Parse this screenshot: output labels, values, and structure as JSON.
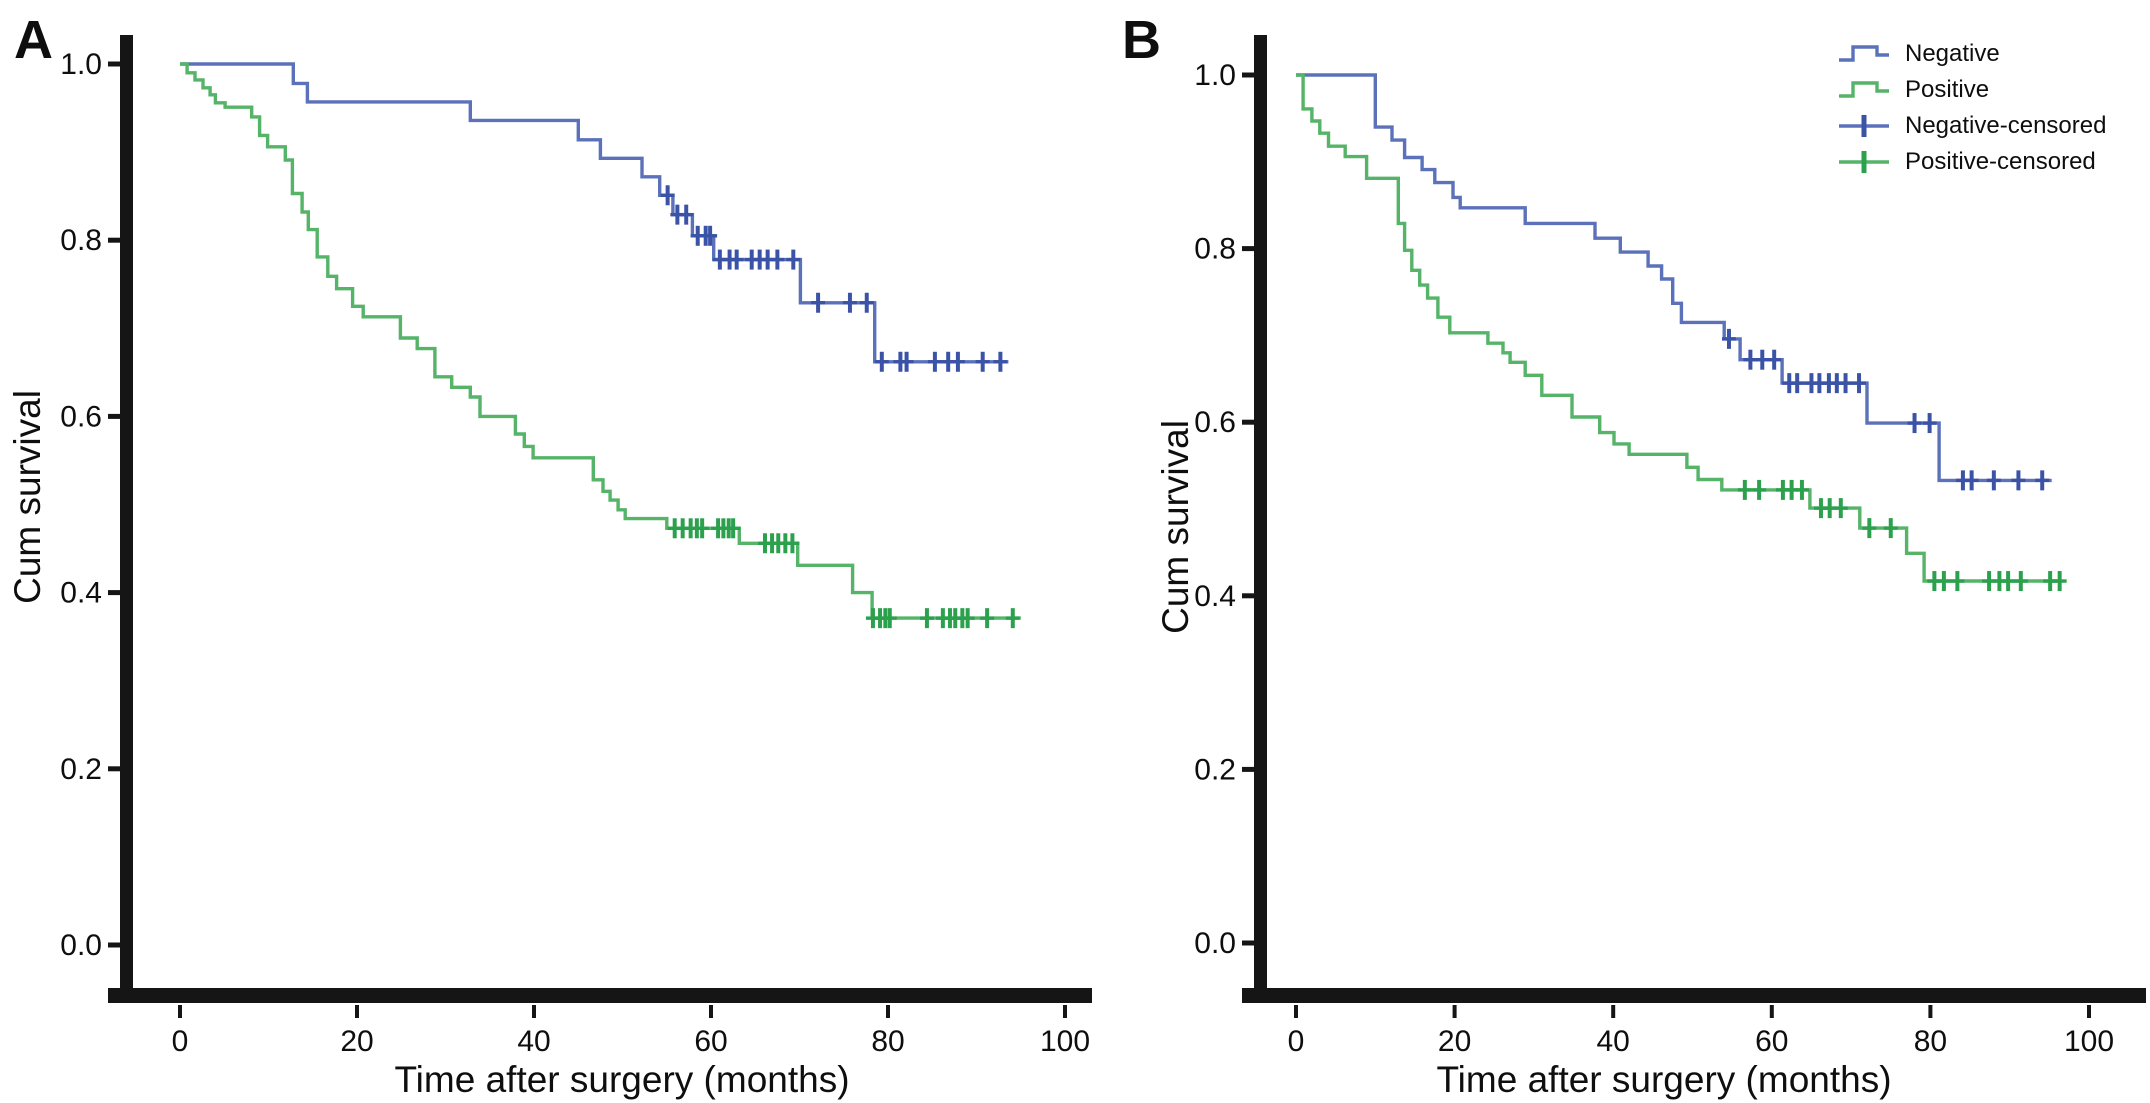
{
  "chart_data": {
    "type": "line",
    "subtype": "kaplan-meier-step",
    "grid": false,
    "legend": {
      "position": "top-right",
      "entries": [
        {
          "label": "Negative",
          "glyph": "step-line",
          "color": "#5b72bb",
          "accent": "#5b72bb"
        },
        {
          "label": "Positive",
          "glyph": "step-line",
          "color": "#55b468",
          "accent": "#55b468"
        },
        {
          "label": "Negative-censored",
          "glyph": "censor-plus",
          "color": "#5b72bb",
          "accent": "#3b53a7"
        },
        {
          "label": "Positive-censored",
          "glyph": "censor-plus",
          "color": "#55b468",
          "accent": "#2ca14d"
        }
      ]
    },
    "panels": [
      {
        "label": "A",
        "xlabel": "Time after surgery (months)",
        "ylabel": "Cum survival",
        "xlim": [
          0,
          100
        ],
        "ylim": [
          0.0,
          1.0
        ],
        "x_ticks": [
          0,
          20,
          40,
          60,
          80,
          100
        ],
        "y_ticks": [
          0.0,
          0.2,
          0.4,
          0.6,
          0.8,
          1.0
        ],
        "series": [
          {
            "name": "Negative",
            "color": "#5b72bb",
            "censor_color": "#3b53a7",
            "start": [
              0,
              1.0
            ],
            "steps": [
              [
                12.8,
                0.978
              ],
              [
                14.4,
                0.957
              ],
              [
                32.8,
                0.936
              ],
              [
                45.0,
                0.914
              ],
              [
                47.5,
                0.893
              ],
              [
                52.2,
                0.872
              ],
              [
                54.2,
                0.851
              ],
              [
                55.7,
                0.829
              ],
              [
                57.9,
                0.805
              ],
              [
                60.3,
                0.778
              ],
              [
                70.1,
                0.729
              ],
              [
                78.5,
                0.662
              ]
            ],
            "end_time": 93.6,
            "censored_times": [
              55.1,
              56.2,
              57.2,
              58.5,
              59.4,
              59.9,
              61.0,
              62.1,
              62.9,
              64.6,
              65.5,
              66.4,
              67.5,
              69.3,
              72.1,
              75.7,
              77.6,
              79.3,
              81.4,
              82.1,
              85.3,
              86.8,
              87.9,
              90.7,
              92.7
            ]
          },
          {
            "name": "Positive",
            "color": "#55b468",
            "censor_color": "#2ca14d",
            "start": [
              0,
              1.0
            ],
            "steps": [
              [
                0.8,
                0.99
              ],
              [
                1.7,
                0.982
              ],
              [
                2.6,
                0.973
              ],
              [
                3.4,
                0.965
              ],
              [
                4.0,
                0.956
              ],
              [
                5.1,
                0.951
              ],
              [
                8.1,
                0.94
              ],
              [
                9.0,
                0.919
              ],
              [
                9.9,
                0.906
              ],
              [
                11.9,
                0.891
              ],
              [
                12.7,
                0.853
              ],
              [
                13.8,
                0.832
              ],
              [
                14.5,
                0.812
              ],
              [
                15.5,
                0.781
              ],
              [
                16.7,
                0.759
              ],
              [
                17.7,
                0.745
              ],
              [
                19.5,
                0.725
              ],
              [
                20.7,
                0.713
              ],
              [
                24.9,
                0.689
              ],
              [
                26.8,
                0.677
              ],
              [
                28.8,
                0.645
              ],
              [
                30.7,
                0.633
              ],
              [
                32.8,
                0.622
              ],
              [
                33.9,
                0.6
              ],
              [
                37.9,
                0.58
              ],
              [
                38.9,
                0.566
              ],
              [
                39.9,
                0.553
              ],
              [
                46.7,
                0.528
              ],
              [
                47.8,
                0.515
              ],
              [
                48.6,
                0.505
              ],
              [
                49.5,
                0.494
              ],
              [
                50.3,
                0.484
              ],
              [
                55.0,
                0.473
              ],
              [
                63.2,
                0.456
              ],
              [
                69.8,
                0.431
              ],
              [
                76.0,
                0.4
              ],
              [
                78.2,
                0.371
              ]
            ],
            "end_time": 95.0,
            "censored_times": [
              55.9,
              56.8,
              57.7,
              58.4,
              59.0,
              60.8,
              61.4,
              62.0,
              62.5,
              66.1,
              66.9,
              67.6,
              68.4,
              69.2,
              78.3,
              79.1,
              79.7,
              80.2,
              84.4,
              86.2,
              87.0,
              87.6,
              88.4,
              89.0,
              91.2,
              94.1
            ]
          }
        ]
      },
      {
        "label": "B",
        "xlabel": "Time after surgery (months)",
        "ylabel": "Cum survival",
        "xlim": [
          0,
          100
        ],
        "ylim": [
          0.0,
          1.0
        ],
        "x_ticks": [
          0,
          20,
          40,
          60,
          80,
          100
        ],
        "y_ticks": [
          0.0,
          0.2,
          0.4,
          0.6,
          0.8,
          1.0
        ],
        "series": [
          {
            "name": "Negative",
            "color": "#5b72bb",
            "censor_color": "#3b53a7",
            "start": [
              0,
              1.0
            ],
            "steps": [
              [
                10.0,
                0.94
              ],
              [
                12.1,
                0.925
              ],
              [
                13.7,
                0.905
              ],
              [
                15.9,
                0.891
              ],
              [
                17.5,
                0.876
              ],
              [
                19.8,
                0.859
              ],
              [
                20.7,
                0.847
              ],
              [
                28.9,
                0.829
              ],
              [
                37.7,
                0.812
              ],
              [
                40.9,
                0.796
              ],
              [
                44.4,
                0.78
              ],
              [
                46.1,
                0.765
              ],
              [
                47.5,
                0.737
              ],
              [
                48.6,
                0.715
              ],
              [
                54.0,
                0.696
              ],
              [
                56.0,
                0.672
              ],
              [
                61.3,
                0.645
              ],
              [
                72.0,
                0.599
              ],
              [
                81.1,
                0.533
              ]
            ],
            "end_time": 95.3,
            "censored_times": [
              54.6,
              57.3,
              58.8,
              60.3,
              62.2,
              63.2,
              65.0,
              66.0,
              67.2,
              68.2,
              69.3,
              71.0,
              78.0,
              79.9,
              84.1,
              85.2,
              88.0,
              91.1,
              94.1
            ]
          },
          {
            "name": "Positive",
            "color": "#55b468",
            "censor_color": "#2ca14d",
            "start": [
              0,
              1.0
            ],
            "steps": [
              [
                0.9,
                0.961
              ],
              [
                2.0,
                0.947
              ],
              [
                3.0,
                0.933
              ],
              [
                4.1,
                0.918
              ],
              [
                6.2,
                0.906
              ],
              [
                8.9,
                0.881
              ],
              [
                12.9,
                0.829
              ],
              [
                13.7,
                0.798
              ],
              [
                14.6,
                0.775
              ],
              [
                15.6,
                0.758
              ],
              [
                16.6,
                0.743
              ],
              [
                17.9,
                0.721
              ],
              [
                19.4,
                0.703
              ],
              [
                24.2,
                0.691
              ],
              [
                26.1,
                0.68
              ],
              [
                27.0,
                0.669
              ],
              [
                28.9,
                0.654
              ],
              [
                31.0,
                0.631
              ],
              [
                34.8,
                0.606
              ],
              [
                38.3,
                0.588
              ],
              [
                40.1,
                0.575
              ],
              [
                42.0,
                0.563
              ],
              [
                49.3,
                0.548
              ],
              [
                50.7,
                0.534
              ],
              [
                53.7,
                0.522
              ],
              [
                64.8,
                0.501
              ],
              [
                71.1,
                0.478
              ],
              [
                77.0,
                0.449
              ],
              [
                79.2,
                0.417
              ]
            ],
            "end_time": 96.4,
            "censored_times": [
              56.6,
              58.4,
              61.4,
              62.5,
              63.8,
              66.2,
              67.3,
              68.7,
              72.3,
              75.0,
              80.5,
              81.7,
              83.4,
              87.4,
              88.7,
              89.8,
              91.4,
              95.1,
              96.3
            ]
          }
        ]
      }
    ]
  }
}
